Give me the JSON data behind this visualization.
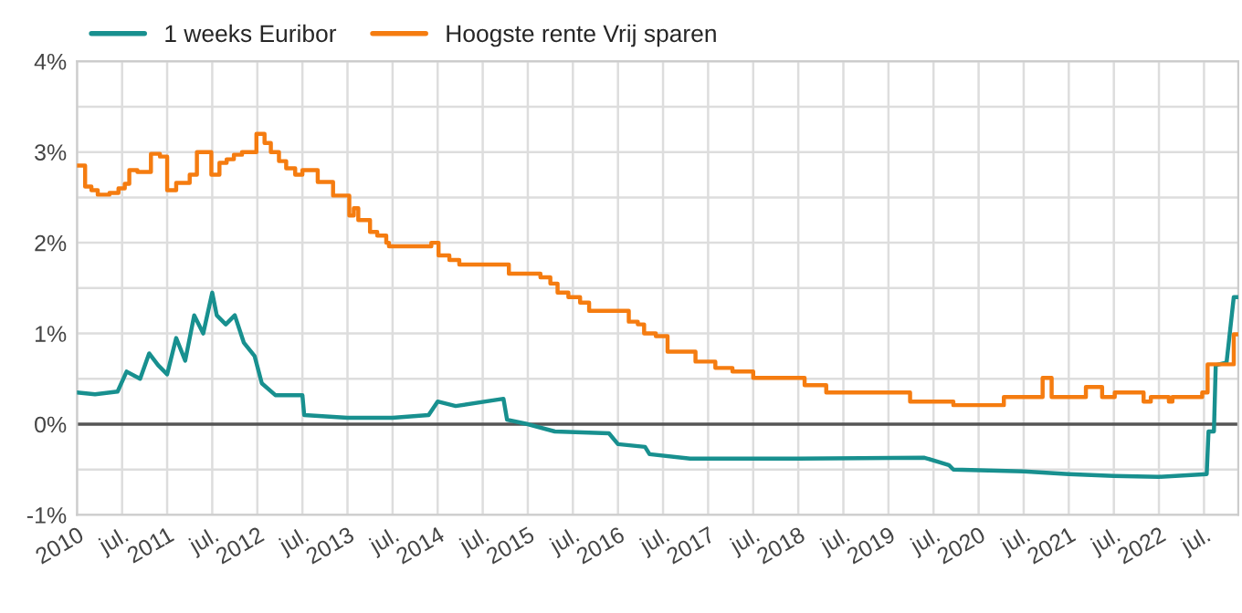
{
  "chart_data": {
    "type": "line",
    "xlim": [
      2010,
      2022.88
    ],
    "xticks": [
      {
        "value": 2010,
        "label": "2010"
      },
      {
        "value": 2010.5,
        "label": "jul."
      },
      {
        "value": 2011,
        "label": "2011"
      },
      {
        "value": 2011.5,
        "label": "jul."
      },
      {
        "value": 2012,
        "label": "2012"
      },
      {
        "value": 2012.5,
        "label": "jul."
      },
      {
        "value": 2013,
        "label": "2013"
      },
      {
        "value": 2013.5,
        "label": "jul."
      },
      {
        "value": 2014,
        "label": "2014"
      },
      {
        "value": 2014.5,
        "label": "jul."
      },
      {
        "value": 2015,
        "label": "2015"
      },
      {
        "value": 2015.5,
        "label": "jul."
      },
      {
        "value": 2016,
        "label": "2016"
      },
      {
        "value": 2016.5,
        "label": "jul."
      },
      {
        "value": 2017,
        "label": "2017"
      },
      {
        "value": 2017.5,
        "label": "jul."
      },
      {
        "value": 2018,
        "label": "2018"
      },
      {
        "value": 2018.5,
        "label": "jul."
      },
      {
        "value": 2019,
        "label": "2019"
      },
      {
        "value": 2019.5,
        "label": "jul."
      },
      {
        "value": 2020,
        "label": "2020"
      },
      {
        "value": 2020.5,
        "label": "jul."
      },
      {
        "value": 2021,
        "label": "2021"
      },
      {
        "value": 2021.5,
        "label": "jul."
      },
      {
        "value": 2022,
        "label": "2022"
      },
      {
        "value": 2022.5,
        "label": "jul."
      }
    ],
    "ylim": [
      -1,
      4
    ],
    "yticks": [
      {
        "value": -1,
        "label": "-1%"
      },
      {
        "value": -0.5,
        "label": null
      },
      {
        "value": 0,
        "label": "0%"
      },
      {
        "value": 0.5,
        "label": null
      },
      {
        "value": 1,
        "label": "1%"
      },
      {
        "value": 1.5,
        "label": null
      },
      {
        "value": 2,
        "label": "2%"
      },
      {
        "value": 2.5,
        "label": null
      },
      {
        "value": 3,
        "label": "3%"
      },
      {
        "value": 3.5,
        "label": null
      },
      {
        "value": 4,
        "label": "4%"
      }
    ],
    "grid": true,
    "legend": "top left",
    "ref_lines": [
      {
        "axis": "y",
        "value": 0,
        "color": "#555555"
      }
    ],
    "series": [
      {
        "name": "1 weeks Euribor",
        "color": "#18908f",
        "x": [
          2010.0,
          2010.2,
          2010.45,
          2010.55,
          2010.7,
          2010.8,
          2010.9,
          2011.0,
          2011.1,
          2011.2,
          2011.3,
          2011.4,
          2011.5,
          2011.55,
          2011.65,
          2011.75,
          2011.85,
          2011.97,
          2012.05,
          2012.2,
          2012.5,
          2012.52,
          2013.0,
          2013.5,
          2013.9,
          2014.0,
          2014.2,
          2014.73,
          2014.77,
          2015.0,
          2015.3,
          2015.9,
          2016.0,
          2016.3,
          2016.35,
          2016.8,
          2018.0,
          2019.4,
          2019.67,
          2019.72,
          2020.5,
          2021.0,
          2021.5,
          2022.0,
          2022.53,
          2022.55,
          2022.61,
          2022.63,
          2022.75,
          2022.83,
          2022.88
        ],
        "values": [
          0.35,
          0.33,
          0.36,
          0.58,
          0.5,
          0.78,
          0.65,
          0.55,
          0.95,
          0.7,
          1.2,
          1.0,
          1.45,
          1.2,
          1.1,
          1.2,
          0.9,
          0.75,
          0.45,
          0.32,
          0.32,
          0.1,
          0.07,
          0.07,
          0.1,
          0.25,
          0.2,
          0.28,
          0.05,
          0.0,
          -0.08,
          -0.1,
          -0.22,
          -0.25,
          -0.33,
          -0.38,
          -0.38,
          -0.37,
          -0.45,
          -0.5,
          -0.52,
          -0.55,
          -0.57,
          -0.58,
          -0.55,
          -0.08,
          -0.08,
          0.65,
          0.68,
          1.4,
          1.4
        ]
      },
      {
        "name": "Hoogste rente Vrij sparen",
        "color": "#f57c10",
        "type": "step",
        "x": [
          2010.0,
          2010.09,
          2010.16,
          2010.23,
          2010.36,
          2010.46,
          2010.53,
          2010.58,
          2010.67,
          2010.82,
          2010.92,
          2011.0,
          2011.1,
          2011.25,
          2011.33,
          2011.49,
          2011.58,
          2011.66,
          2011.74,
          2011.83,
          2011.99,
          2012.08,
          2012.15,
          2012.24,
          2012.32,
          2012.42,
          2012.5,
          2012.67,
          2012.84,
          2013.02,
          2013.07,
          2013.12,
          2013.25,
          2013.33,
          2013.43,
          2013.46,
          2013.93,
          2014.01,
          2014.13,
          2014.24,
          2014.79,
          2015.14,
          2015.25,
          2015.33,
          2015.45,
          2015.58,
          2015.68,
          2016.12,
          2016.22,
          2016.29,
          2016.42,
          2016.55,
          2016.86,
          2017.08,
          2017.27,
          2017.5,
          2018.07,
          2018.31,
          2019.24,
          2019.72,
          2020.28,
          2020.71,
          2020.81,
          2021.19,
          2021.37,
          2021.51,
          2021.83,
          2021.91,
          2022.11,
          2022.15,
          2022.48,
          2022.54,
          2022.83,
          2022.88
        ],
        "values": [
          2.85,
          2.62,
          2.58,
          2.53,
          2.55,
          2.6,
          2.65,
          2.8,
          2.78,
          2.98,
          2.95,
          2.58,
          2.66,
          2.75,
          3.0,
          2.75,
          2.88,
          2.92,
          2.97,
          3.0,
          3.2,
          3.1,
          3.0,
          2.9,
          2.82,
          2.75,
          2.8,
          2.67,
          2.52,
          2.3,
          2.38,
          2.25,
          2.12,
          2.08,
          2.0,
          1.96,
          2.0,
          1.86,
          1.81,
          1.76,
          1.66,
          1.62,
          1.55,
          1.45,
          1.4,
          1.34,
          1.25,
          1.13,
          1.1,
          1.0,
          0.97,
          0.8,
          0.69,
          0.62,
          0.58,
          0.51,
          0.43,
          0.35,
          0.25,
          0.21,
          0.3,
          0.51,
          0.3,
          0.41,
          0.3,
          0.35,
          0.25,
          0.3,
          0.25,
          0.3,
          0.35,
          0.66,
          0.99,
          0.99
        ]
      }
    ]
  }
}
